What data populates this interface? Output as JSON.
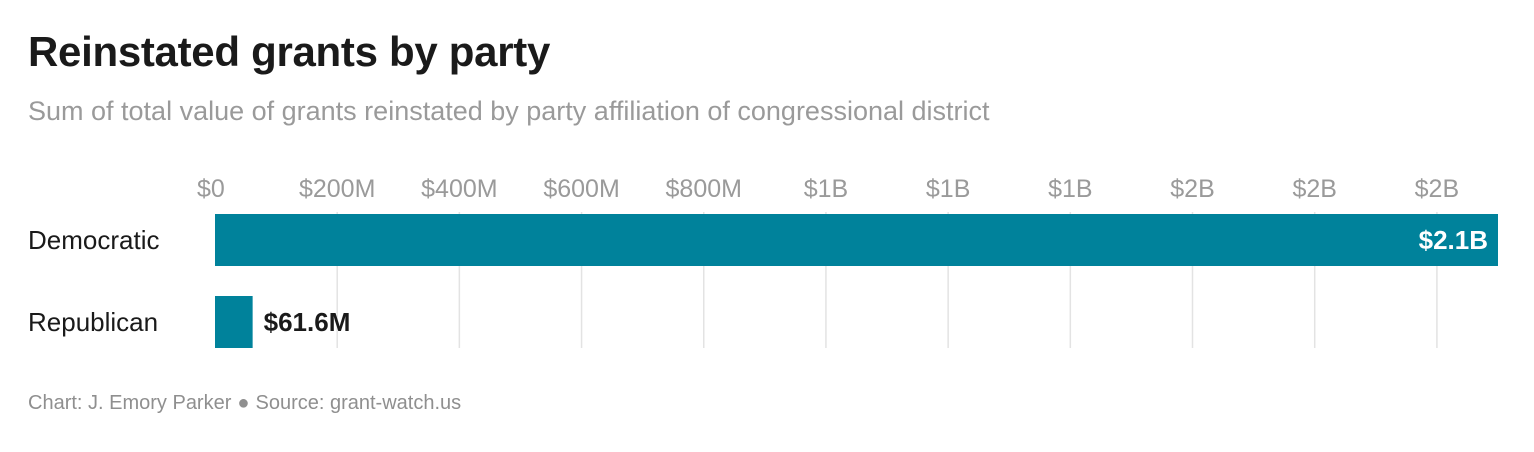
{
  "title": "Reinstated grants by party",
  "subtitle": "Sum of total value of grants reinstated by party affiliation of congressional district",
  "footer": {
    "credit": "Chart: J. Emory Parker",
    "separator": "●",
    "source": "Source: grant-watch.us"
  },
  "colors": {
    "bar": "#00829b",
    "grid": "#e3e3e3",
    "tick_text": "#9a9a9a",
    "category_text": "#1a1a1a",
    "label_inside": "#ffffff",
    "label_outside": "#1a1a1a"
  },
  "chart_data": {
    "type": "bar",
    "orientation": "horizontal",
    "categories": [
      "Democratic",
      "Republican"
    ],
    "values": [
      2100000000,
      61600000
    ],
    "value_labels": [
      "$2.1B",
      "$61.6M"
    ],
    "xlim": [
      0,
      2100000000
    ],
    "x_ticks": [
      0,
      200000000,
      400000000,
      600000000,
      800000000,
      1000000000,
      1200000000,
      1400000000,
      1600000000,
      1800000000,
      2000000000
    ],
    "x_tick_labels": [
      "$0",
      "$200M",
      "$400M",
      "$600M",
      "$800M",
      "$1B",
      "$1B",
      "$1B",
      "$2B",
      "$2B",
      "$2B"
    ],
    "xaxis_position": "top",
    "grid": true
  }
}
